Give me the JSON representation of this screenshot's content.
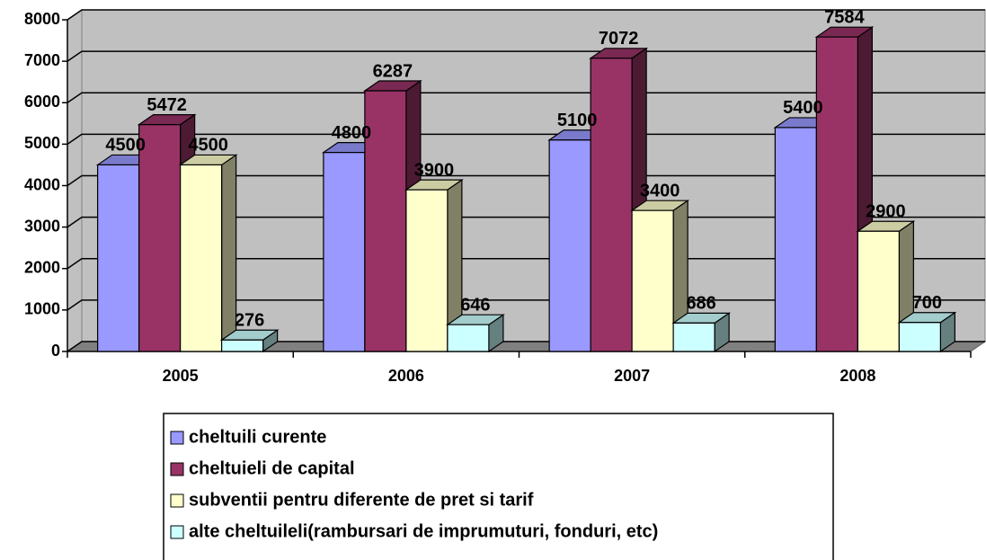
{
  "chart_data": {
    "type": "bar3d",
    "categories": [
      "2005",
      "2006",
      "2007",
      "2008"
    ],
    "series": [
      {
        "name": "cheltuili curente",
        "color": "#9999ff",
        "values": [
          4500,
          4800,
          5100,
          5400
        ]
      },
      {
        "name": "cheltuieli de capital",
        "color": "#993366",
        "values": [
          5472,
          6287,
          7072,
          7584
        ]
      },
      {
        "name": "subventii pentru diferente de pret si tarif",
        "color": "#ffffcc",
        "values": [
          4500,
          3900,
          3400,
          2900
        ]
      },
      {
        "name": "alte cheltuileli(rambursari de imprumuturi, fonduri, etc)",
        "color": "#ccffff",
        "values": [
          276,
          646,
          686,
          700
        ]
      }
    ],
    "ylim": [
      0,
      8000
    ],
    "yticks": [
      0,
      1000,
      2000,
      3000,
      4000,
      5000,
      6000,
      7000,
      8000
    ],
    "grid": true,
    "legend": "bottom"
  }
}
